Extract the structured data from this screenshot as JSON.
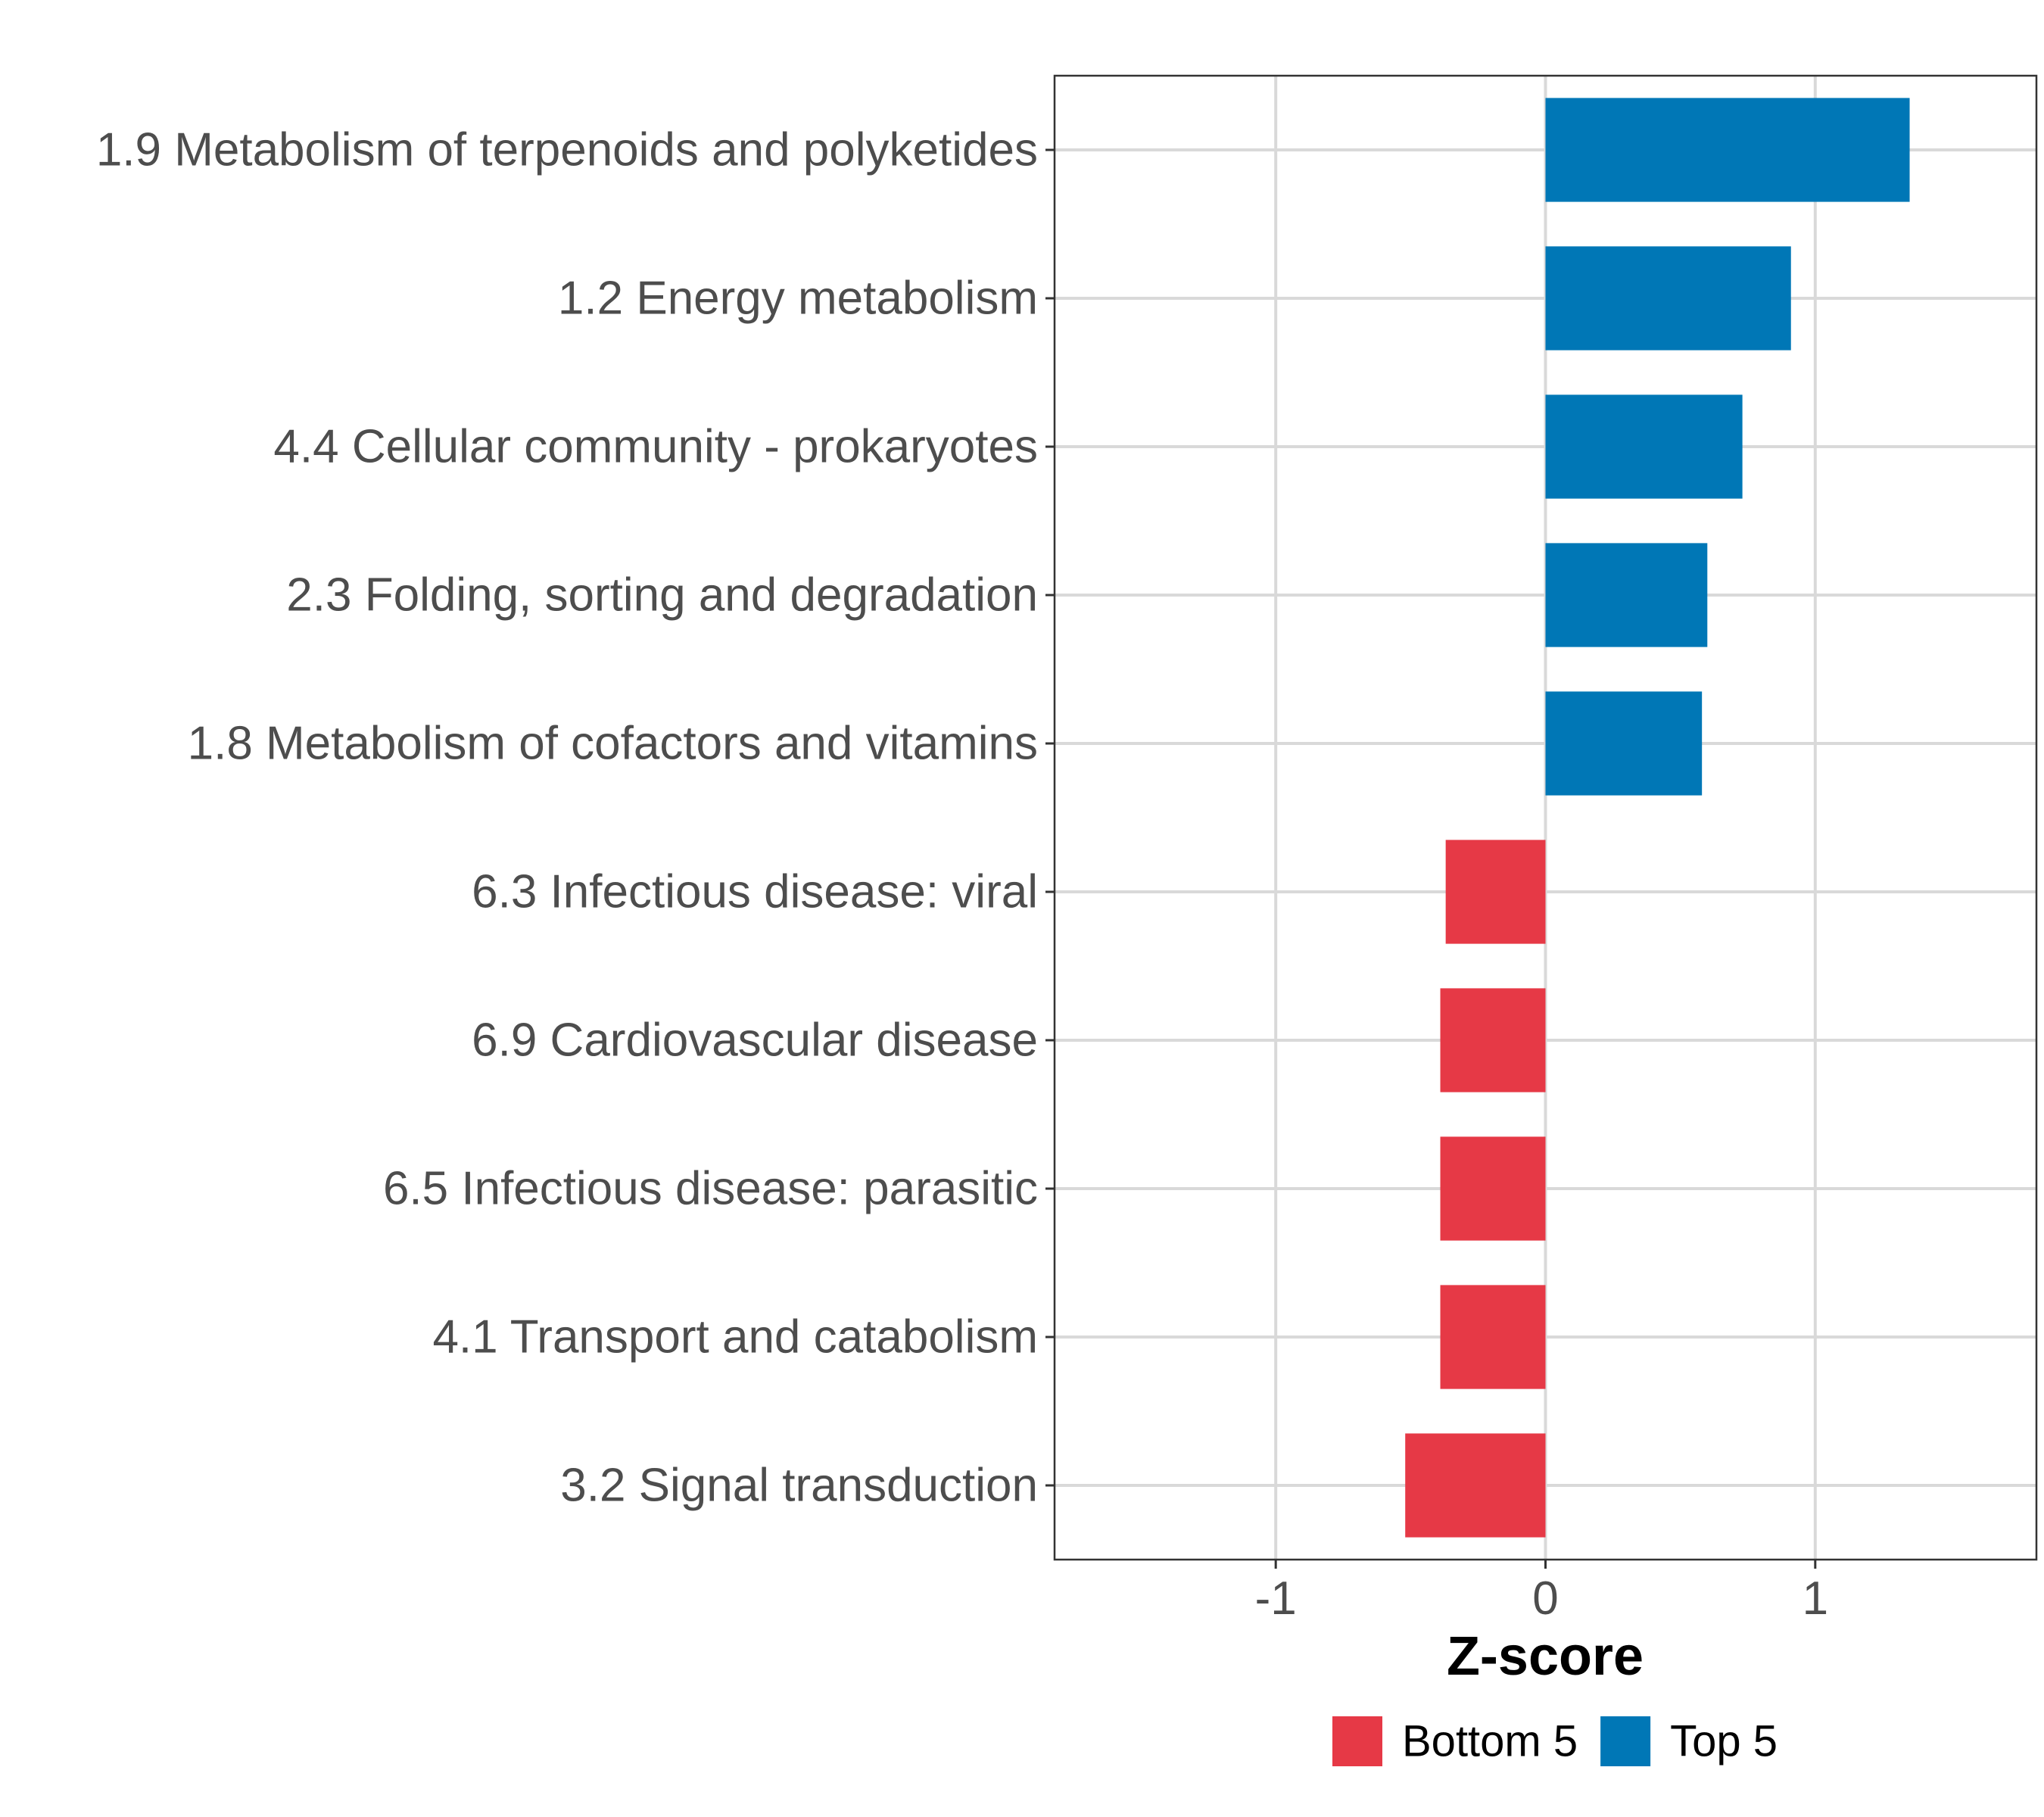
{
  "chart_data": {
    "type": "bar",
    "orientation": "horizontal",
    "categories": [
      "1.9 Metabolism of terpenoids and polyketides",
      "1.2 Energy metabolism",
      "4.4 Cellular community - prokaryotes",
      "2.3 Folding, sorting and degradation",
      "1.8 Metabolism of cofactors and vitamins",
      "6.3 Infectious disease: viral",
      "6.9 Cardiovascular disease",
      "6.5 Infectious disease: parasitic",
      "4.1 Transport and catabolism",
      "3.2 Signal transduction"
    ],
    "values": [
      1.35,
      0.91,
      0.73,
      0.6,
      0.58,
      -0.37,
      -0.39,
      -0.39,
      -0.39,
      -0.52
    ],
    "groups": [
      "Top 5",
      "Top 5",
      "Top 5",
      "Top 5",
      "Top 5",
      "Bottom 5",
      "Bottom 5",
      "Bottom 5",
      "Bottom 5",
      "Bottom 5"
    ],
    "xlabel": "Z-score",
    "ylabel": "",
    "xlim": [
      -1.82,
      1.82
    ],
    "xticks": [
      -1,
      0,
      1
    ],
    "xtick_labels": [
      "-1",
      "0",
      "1"
    ],
    "grid": true,
    "legend": {
      "position": "bottom",
      "entries": [
        {
          "label": "Bottom 5",
          "color": "#e63946"
        },
        {
          "label": "Top 5",
          "color": "#0077b6"
        }
      ]
    }
  }
}
